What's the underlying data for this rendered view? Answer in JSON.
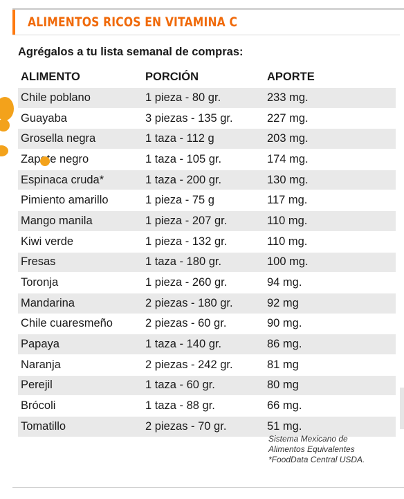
{
  "title": "ALIMENTOS RICOS EN VITAMINA C",
  "subtitle": "Agrégalos a tu lista semanal de compras:",
  "table": {
    "headers": [
      "ALIMENTO",
      "PORCIÓN",
      "APORTE"
    ],
    "rows": [
      [
        "Chile poblano",
        "1 pieza - 80 gr.",
        "233 mg."
      ],
      [
        "Guayaba",
        "3 piezas - 135 gr.",
        "227 mg."
      ],
      [
        "Grosella negra",
        "1 taza - 112 g",
        "203 mg."
      ],
      [
        "Zapote negro",
        "1 taza - 105 gr.",
        "174 mg."
      ],
      [
        "Espinaca cruda*",
        "1 taza - 200 gr.",
        "130 mg."
      ],
      [
        "Pimiento amarillo",
        "1 pieza - 75 g",
        "117 mg."
      ],
      [
        "Mango manila",
        "1 pieza - 207 gr.",
        "110 mg."
      ],
      [
        "Kiwi verde",
        "1 pieza - 132 gr.",
        "110 mg."
      ],
      [
        "Fresas",
        "1 taza - 180 gr.",
        "100 mg."
      ],
      [
        "Toronja",
        "1 pieza - 260 gr.",
        "94 mg."
      ],
      [
        "Mandarina",
        "2 piezas - 180 gr.",
        "92 mg"
      ],
      [
        "Chile cuaresmeño",
        "2 piezas - 60 gr.",
        "90 mg."
      ],
      [
        "Papaya",
        "1 taza - 140 gr.",
        "86 mg."
      ],
      [
        "Naranja",
        "2 piezas - 242 gr.",
        "81 mg"
      ],
      [
        "Perejil",
        "1 taza - 60 gr.",
        "80 mg"
      ],
      [
        "Brócoli",
        "1 taza - 88 gr.",
        "66 mg."
      ],
      [
        "Tomatillo",
        "2 piezas - 70 gr.",
        "51 mg."
      ]
    ]
  },
  "source": {
    "line1": "Sistema Mexicano de",
    "line2": "Alimentos Equivalentes",
    "line3": "*FoodData Central USDA."
  },
  "colors": {
    "accent": "#f06a0a",
    "row_stripe": "#e9e9e9",
    "fruit": "#f3a21b"
  }
}
